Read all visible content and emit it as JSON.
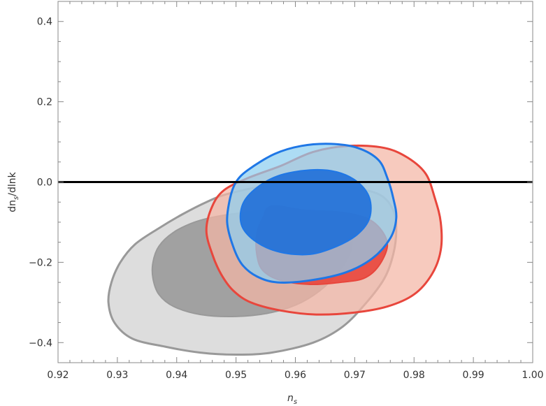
{
  "chart_data": {
    "type": "contour",
    "xlabel": "n",
    "xlabel_sub": "s",
    "ylabel_parts": [
      "dn",
      "s",
      "/dlnk"
    ],
    "xlim": [
      0.92,
      1.0
    ],
    "ylim": [
      -0.45,
      0.45
    ],
    "x_ticks": [
      "0.92",
      "0.93",
      "0.94",
      "0.95",
      "0.96",
      "0.97",
      "0.98",
      "0.99",
      "1.00"
    ],
    "y_ticks": [
      "0.4",
      "0.2",
      "0.0",
      "-0.2",
      "-0.4"
    ],
    "x_tick_values": [
      0.92,
      0.93,
      0.94,
      0.95,
      0.96,
      0.97,
      0.98,
      0.99,
      1.0
    ],
    "y_tick_values": [
      0.4,
      0.2,
      0.0,
      -0.2,
      -0.4
    ],
    "reference_line": {
      "y": 0.0,
      "color": "#000000"
    },
    "series": [
      {
        "color": "#999999",
        "fill_outer": "#d0d0d0",
        "fill_inner": "#9a9a9a",
        "outer": [
          [
            0.9485,
            -0.03
          ],
          [
            0.955,
            -0.01
          ],
          [
            0.962,
            -0.005
          ],
          [
            0.968,
            -0.01
          ],
          [
            0.974,
            -0.03
          ],
          [
            0.9765,
            -0.07
          ],
          [
            0.977,
            -0.12
          ],
          [
            0.9765,
            -0.18
          ],
          [
            0.975,
            -0.24
          ],
          [
            0.972,
            -0.3
          ],
          [
            0.968,
            -0.36
          ],
          [
            0.963,
            -0.4
          ],
          [
            0.956,
            -0.425
          ],
          [
            0.95,
            -0.43
          ],
          [
            0.944,
            -0.425
          ],
          [
            0.938,
            -0.41
          ],
          [
            0.9325,
            -0.39
          ],
          [
            0.9295,
            -0.35
          ],
          [
            0.9285,
            -0.3
          ],
          [
            0.929,
            -0.25
          ],
          [
            0.9305,
            -0.2
          ],
          [
            0.933,
            -0.155
          ],
          [
            0.937,
            -0.115
          ],
          [
            0.941,
            -0.08
          ],
          [
            0.945,
            -0.05
          ]
        ],
        "inner": [
          [
            0.9575,
            -0.07
          ],
          [
            0.962,
            -0.075
          ],
          [
            0.9665,
            -0.09
          ],
          [
            0.969,
            -0.12
          ],
          [
            0.9695,
            -0.16
          ],
          [
            0.968,
            -0.21
          ],
          [
            0.965,
            -0.26
          ],
          [
            0.961,
            -0.3
          ],
          [
            0.956,
            -0.325
          ],
          [
            0.95,
            -0.335
          ],
          [
            0.944,
            -0.33
          ],
          [
            0.9395,
            -0.31
          ],
          [
            0.937,
            -0.28
          ],
          [
            0.936,
            -0.24
          ],
          [
            0.936,
            -0.2
          ],
          [
            0.937,
            -0.16
          ],
          [
            0.9395,
            -0.125
          ],
          [
            0.943,
            -0.1
          ],
          [
            0.947,
            -0.085
          ],
          [
            0.952,
            -0.075
          ]
        ]
      },
      {
        "color": "#e8463c",
        "fill_outer": "#f4b5a5",
        "fill_inner": "#e8463c",
        "outer": [
          [
            0.9575,
            0.04
          ],
          [
            0.963,
            0.075
          ],
          [
            0.969,
            0.09
          ],
          [
            0.975,
            0.085
          ],
          [
            0.979,
            0.06
          ],
          [
            0.982,
            0.02
          ],
          [
            0.9835,
            -0.04
          ],
          [
            0.9845,
            -0.1
          ],
          [
            0.9845,
            -0.17
          ],
          [
            0.983,
            -0.23
          ],
          [
            0.98,
            -0.28
          ],
          [
            0.9755,
            -0.31
          ],
          [
            0.97,
            -0.325
          ],
          [
            0.9635,
            -0.33
          ],
          [
            0.9575,
            -0.32
          ],
          [
            0.9525,
            -0.3
          ],
          [
            0.9495,
            -0.27
          ],
          [
            0.9475,
            -0.23
          ],
          [
            0.946,
            -0.18
          ],
          [
            0.945,
            -0.12
          ],
          [
            0.946,
            -0.06
          ],
          [
            0.948,
            -0.02
          ],
          [
            0.952,
            0.01
          ]
        ],
        "inner": [
          [
            0.956,
            -0.06
          ],
          [
            0.9615,
            -0.07
          ],
          [
            0.9675,
            -0.075
          ],
          [
            0.972,
            -0.09
          ],
          [
            0.9745,
            -0.12
          ],
          [
            0.9755,
            -0.16
          ],
          [
            0.974,
            -0.21
          ],
          [
            0.9715,
            -0.24
          ],
          [
            0.9675,
            -0.25
          ],
          [
            0.9625,
            -0.255
          ],
          [
            0.9575,
            -0.245
          ],
          [
            0.9545,
            -0.22
          ],
          [
            0.9535,
            -0.18
          ],
          [
            0.9535,
            -0.13
          ],
          [
            0.9545,
            -0.09
          ]
        ]
      },
      {
        "color": "#1f77e6",
        "fill_outer": "#8dcef0",
        "fill_inner": "#1f6fd8",
        "outer": [
          [
            0.952,
            0.03
          ],
          [
            0.9565,
            0.07
          ],
          [
            0.961,
            0.09
          ],
          [
            0.966,
            0.095
          ],
          [
            0.9705,
            0.085
          ],
          [
            0.974,
            0.055
          ],
          [
            0.9755,
            0.01
          ],
          [
            0.9765,
            -0.04
          ],
          [
            0.977,
            -0.09
          ],
          [
            0.976,
            -0.14
          ],
          [
            0.973,
            -0.19
          ],
          [
            0.9685,
            -0.225
          ],
          [
            0.9625,
            -0.245
          ],
          [
            0.957,
            -0.25
          ],
          [
            0.9535,
            -0.235
          ],
          [
            0.951,
            -0.205
          ],
          [
            0.9495,
            -0.16
          ],
          [
            0.9485,
            -0.1
          ],
          [
            0.949,
            -0.04
          ],
          [
            0.95,
            0.0
          ]
        ],
        "inner": [
          [
            0.9625,
            0.03
          ],
          [
            0.967,
            0.025
          ],
          [
            0.9705,
            0.0
          ],
          [
            0.9725,
            -0.04
          ],
          [
            0.9725,
            -0.09
          ],
          [
            0.9705,
            -0.13
          ],
          [
            0.967,
            -0.16
          ],
          [
            0.9625,
            -0.18
          ],
          [
            0.9575,
            -0.175
          ],
          [
            0.9535,
            -0.15
          ],
          [
            0.951,
            -0.11
          ],
          [
            0.951,
            -0.06
          ],
          [
            0.953,
            -0.02
          ],
          [
            0.957,
            0.015
          ]
        ]
      }
    ]
  }
}
